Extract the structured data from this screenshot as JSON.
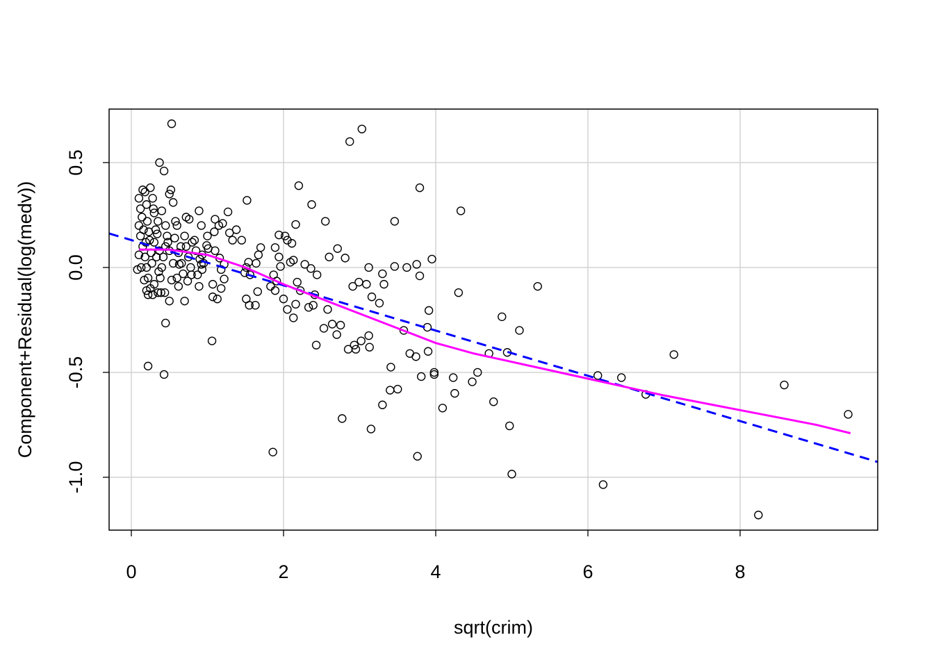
{
  "chart_data": {
    "type": "scatter",
    "xlabel": "sqrt(crim)",
    "ylabel": "Component+Residual(log(medv))",
    "xlim": [
      -0.292,
      9.808
    ],
    "ylim": [
      -1.252,
      0.755
    ],
    "xticks": [
      0,
      2,
      4,
      6,
      8
    ],
    "yticks": [
      {
        "value": -1,
        "label": "-1.0"
      },
      -0.5,
      {
        "value": 0,
        "label": "0.0"
      },
      0.5
    ],
    "grid": true,
    "color": "#000000",
    "x": [
      0.53,
      2.87,
      3.03,
      0.37,
      0.43,
      3.79,
      2.2,
      4.33,
      3.46,
      1.52,
      2.37,
      2.55,
      0.22,
      0.43,
      0.45,
      1.06,
      1.86,
      2.77,
      3.15,
      3.76,
      4.09,
      4.25,
      4.76,
      4.97,
      5.0,
      5.34,
      5.1,
      4.87,
      4.94,
      4.7,
      4.55,
      4.48,
      4.23,
      4.3,
      3.95,
      3.75,
      3.91,
      3.89,
      3.9,
      3.98,
      3.98,
      3.81,
      3.74,
      3.66,
      3.79,
      3.58,
      3.4,
      3.5,
      3.41,
      3.3,
      6.2,
      6.13,
      6.44,
      6.76,
      7.13,
      8.24,
      8.58,
      9.42,
      3.3,
      3.32,
      3.46,
      3.62,
      3.12,
      3.09,
      2.99,
      3.16,
      3.26,
      3.13,
      3.12,
      3.02,
      2.95,
      2.93,
      2.85,
      2.75,
      2.7,
      2.64,
      2.53,
      2.58,
      2.43,
      2.39,
      2.33,
      2.41,
      2.22,
      2.18,
      2.16,
      2.13,
      2.05,
      2.0,
      2.09,
      2.13,
      2.28,
      2.36,
      2.44,
      2.6,
      2.71,
      2.81,
      2.91,
      2.11,
      2.05,
      1.94,
      2.02,
      2.16,
      1.89,
      1.94,
      1.96,
      1.87,
      1.91,
      1.89,
      1.83,
      1.7,
      1.67,
      1.64,
      1.54,
      1.51,
      1.49,
      1.56,
      1.66,
      1.51,
      1.55,
      1.63,
      1.45,
      1.38,
      1.33,
      1.29,
      1.27,
      1.2,
      1.15,
      1.1,
      1.09,
      1.0,
      0.99,
      1.1,
      1.16,
      1.22,
      1.18,
      1.22,
      1.18,
      1.13,
      1.07,
      1.07,
      0.89,
      0.87,
      0.92,
      0.93,
      0.89,
      0.92,
      0.72,
      0.76,
      0.7,
      0.62,
      0.5,
      0.63,
      0.74,
      0.79,
      1.01,
      0.83,
      0.1,
      0.12,
      0.15,
      0.18,
      0.2,
      0.25,
      0.28,
      0.3,
      0.35,
      0.4,
      0.45,
      0.5,
      0.52,
      0.55,
      0.58,
      0.6,
      0.1,
      0.12,
      0.15,
      0.18,
      0.2,
      0.22,
      0.25,
      0.28,
      0.3,
      0.35,
      0.38,
      0.4,
      0.42,
      0.45,
      0.48,
      0.5,
      0.55,
      0.6,
      0.65,
      0.7,
      0.08,
      0.1,
      0.14,
      0.16,
      0.19,
      0.21,
      0.23,
      0.26,
      0.27,
      0.3,
      0.32,
      0.33,
      0.36,
      0.37,
      0.2,
      0.22,
      0.24,
      0.17,
      0.13,
      0.29,
      0.34,
      0.39,
      0.44,
      0.47,
      0.53,
      0.57,
      0.62,
      0.66,
      0.68,
      0.72,
      0.75,
      0.78,
      0.8,
      0.85,
      0.9,
      0.95,
      0.93
    ],
    "values": [
      0.685,
      0.6,
      0.66,
      0.5,
      0.46,
      0.38,
      0.39,
      0.27,
      0.22,
      0.32,
      0.3,
      0.22,
      -0.47,
      -0.51,
      -0.265,
      -0.35,
      -0.88,
      -0.72,
      -0.77,
      -0.9,
      -0.67,
      -0.6,
      -0.64,
      -0.755,
      -0.985,
      -0.09,
      -0.3,
      -0.235,
      -0.405,
      -0.41,
      -0.5,
      -0.545,
      -0.525,
      -0.12,
      0.04,
      0.015,
      -0.205,
      -0.285,
      -0.4,
      -0.5,
      -0.51,
      -0.52,
      -0.425,
      -0.41,
      -0.04,
      -0.3,
      -0.585,
      -0.58,
      -0.475,
      -0.655,
      -1.035,
      -0.515,
      -0.525,
      -0.605,
      -0.415,
      -1.18,
      -0.56,
      -0.7,
      -0.03,
      -0.08,
      0.005,
      0.0,
      0.0,
      -0.08,
      -0.07,
      -0.14,
      -0.17,
      -0.38,
      -0.325,
      -0.35,
      -0.39,
      -0.37,
      -0.39,
      -0.275,
      -0.32,
      -0.27,
      -0.29,
      -0.2,
      -0.37,
      -0.18,
      -0.19,
      -0.13,
      -0.11,
      -0.07,
      -0.175,
      -0.24,
      -0.2,
      -0.15,
      0.025,
      0.035,
      0.015,
      -0.005,
      -0.035,
      0.05,
      0.09,
      0.045,
      -0.09,
      0.115,
      0.13,
      0.155,
      0.15,
      0.205,
      0.095,
      0.05,
      0.005,
      -0.035,
      -0.065,
      -0.11,
      -0.09,
      0.095,
      0.06,
      0.02,
      0.025,
      0.0,
      -0.025,
      -0.035,
      -0.115,
      -0.15,
      -0.18,
      -0.18,
      0.13,
      0.18,
      0.13,
      0.165,
      0.265,
      0.21,
      0.2,
      0.23,
      0.17,
      0.15,
      0.105,
      0.08,
      0.045,
      0.015,
      -0.01,
      -0.055,
      -0.1,
      -0.15,
      -0.08,
      -0.14,
      -0.09,
      -0.035,
      0.015,
      -0.01,
      0.27,
      0.2,
      0.24,
      0.23,
      -0.16,
      -0.09,
      -0.16,
      0.015,
      -0.065,
      -0.035,
      0.09,
      0.13,
      0.33,
      0.28,
      0.37,
      0.36,
      0.3,
      0.38,
      0.33,
      0.26,
      0.22,
      0.27,
      0.2,
      0.35,
      0.37,
      0.31,
      0.22,
      0.2,
      0.2,
      0.15,
      0.1,
      0.05,
      0.0,
      -0.05,
      -0.1,
      -0.13,
      -0.08,
      -0.12,
      -0.05,
      0.0,
      0.05,
      0.1,
      0.12,
      0.08,
      0.02,
      -0.05,
      0.1,
      0.15,
      -0.01,
      0.06,
      0.24,
      0.18,
      0.12,
      0.22,
      0.17,
      0.07,
      0.02,
      0.12,
      0.18,
      0.05,
      -0.02,
      0.08,
      -0.11,
      -0.13,
      0.13,
      -0.06,
      0.0,
      0.28,
      0.16,
      -0.12,
      -0.12,
      0.15,
      -0.06,
      0.14,
      0.07,
      0.02,
      -0.03,
      0.1,
      0.05,
      0.0,
      0.12,
      0.08,
      0.04,
      0.02,
      0.06
    ],
    "lines": [
      {
        "color": "#0000ff",
        "dash": true,
        "x": [
          -0.292,
          9.808
        ],
        "y": [
          0.162,
          -0.927
        ]
      },
      {
        "color": "#ff00ff",
        "dash": false,
        "x": [
          0.1,
          0.5,
          1,
          1.5,
          2,
          2.5,
          3,
          3.5,
          4,
          4.5,
          5,
          6,
          7,
          8,
          9,
          9.45
        ],
        "y": [
          0.085,
          0.085,
          0.06,
          0.0,
          -0.08,
          -0.15,
          -0.22,
          -0.29,
          -0.36,
          -0.41,
          -0.45,
          -0.53,
          -0.61,
          -0.68,
          -0.75,
          -0.79
        ]
      }
    ]
  }
}
